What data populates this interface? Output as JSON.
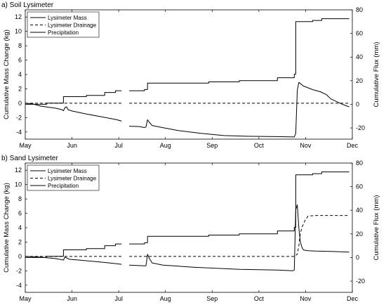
{
  "chart_data": [
    {
      "type": "line",
      "title": "a) Soil Lysimeter",
      "ylabel": "Cumulative Mass Change (kg)",
      "y2label": "Cumulative Flux (mm)",
      "x_tick_labels": [
        "May",
        "Jun",
        "Jul",
        "Aug",
        "Sep",
        "Oct",
        "Nov",
        "Dec"
      ],
      "y_ticks": [
        -4,
        -2,
        0,
        2,
        4,
        6,
        8,
        10,
        12
      ],
      "y2_ticks": [
        -20,
        0,
        20,
        40,
        60,
        80
      ],
      "xlim": [
        0,
        214
      ],
      "ylim": [
        -5,
        13
      ],
      "y2lim": [
        -29.5,
        80
      ],
      "legend": "top-left",
      "series": [
        {
          "name": "Lysimeter Mass",
          "style": "solid",
          "axis": "left",
          "segments": [
            [
              [
                0,
                0
              ],
              [
                5,
                -0.1
              ],
              [
                10,
                -0.4
              ],
              [
                15,
                -0.55
              ],
              [
                20,
                -0.7
              ],
              [
                24,
                -0.9
              ],
              [
                25,
                -1.05
              ],
              [
                26,
                -0.6
              ],
              [
                27,
                -0.5
              ],
              [
                28,
                -0.9
              ],
              [
                31,
                -1.1
              ],
              [
                40,
                -1.5
              ],
              [
                50,
                -1.9
              ],
              [
                60,
                -2.3
              ],
              [
                63,
                -2.5
              ]
            ],
            [
              [
                68,
                -3.2
              ],
              [
                75,
                -3.25
              ],
              [
                78,
                -3.4
              ],
              [
                79,
                -3.3
              ],
              [
                80,
                -2.3
              ],
              [
                81,
                -2.6
              ],
              [
                83,
                -3.1
              ],
              [
                90,
                -3.4
              ],
              [
                100,
                -3.8
              ],
              [
                115,
                -4.2
              ],
              [
                130,
                -4.5
              ],
              [
                145,
                -4.6
              ],
              [
                165,
                -4.65
              ],
              [
                176,
                -4.7
              ],
              [
                177,
                -4.2
              ],
              [
                178,
                1.8
              ],
              [
                179,
                2.9
              ],
              [
                182,
                2.4
              ],
              [
                188,
                1.9
              ],
              [
                193,
                1.6
              ],
              [
                197,
                1.2
              ],
              [
                200,
                0.6
              ],
              [
                204,
                0.2
              ],
              [
                208,
                -0.2
              ],
              [
                212,
                -0.5
              ]
            ]
          ]
        },
        {
          "name": "Lysimeter Drainage",
          "style": "dashed",
          "axis": "left",
          "segments": [
            [
              [
                0,
                0
              ],
              [
                63,
                0
              ]
            ],
            [
              [
                68,
                0
              ],
              [
                212,
                0
              ]
            ]
          ]
        },
        {
          "name": "Precipitation",
          "style": "solid",
          "axis": "right",
          "segments": [
            [
              [
                0,
                0
              ],
              [
                14,
                0
              ],
              [
                14,
                1
              ],
              [
                22,
                1
              ],
              [
                25,
                1
              ],
              [
                25,
                6.5
              ],
              [
                40,
                6.5
              ],
              [
                40,
                7.5
              ],
              [
                52,
                7.5
              ],
              [
                52,
                10
              ],
              [
                59,
                10
              ],
              [
                59,
                11.5
              ],
              [
                63,
                11.5
              ]
            ],
            [
              [
                68,
                11.5
              ],
              [
                78,
                11.5
              ],
              [
                78,
                12.5
              ],
              [
                80,
                12.5
              ],
              [
                80,
                18
              ],
              [
                120,
                18
              ],
              [
                120,
                19
              ],
              [
                140,
                19
              ],
              [
                140,
                20
              ],
              [
                165,
                20
              ],
              [
                165,
                22.5
              ],
              [
                176,
                22.5
              ],
              [
                176,
                25.5
              ],
              [
                177,
                25.5
              ],
              [
                177,
                70
              ],
              [
                188,
                70
              ],
              [
                188,
                71
              ],
              [
                194,
                71
              ],
              [
                194,
                72.5
              ],
              [
                212,
                72.5
              ]
            ]
          ]
        }
      ]
    },
    {
      "type": "line",
      "title": "b) Sand Lysimeter",
      "ylabel": "Cumulative Mass Change (kg)",
      "y2label": "Cumulative Flux (mm)",
      "x_tick_labels": [
        "May",
        "Jun",
        "Jul",
        "Aug",
        "Sep",
        "Oct",
        "Nov",
        "Dec"
      ],
      "y_ticks": [
        -4,
        -2,
        0,
        2,
        4,
        6,
        8,
        10,
        12
      ],
      "y2_ticks": [
        -20,
        0,
        20,
        40,
        60,
        80
      ],
      "xlim": [
        0,
        214
      ],
      "ylim": [
        -5,
        13
      ],
      "y2lim": [
        -29.5,
        80
      ],
      "legend": "top-left",
      "series": [
        {
          "name": "Lysimeter Mass",
          "style": "solid",
          "axis": "left",
          "segments": [
            [
              [
                0,
                0
              ],
              [
                10,
                -0.1
              ],
              [
                20,
                -0.3
              ],
              [
                25,
                -0.5
              ],
              [
                26,
                -0.1
              ],
              [
                27,
                -0.2
              ],
              [
                29,
                -0.4
              ],
              [
                35,
                -0.5
              ],
              [
                45,
                -0.7
              ],
              [
                55,
                -0.9
              ],
              [
                63,
                -1.1
              ]
            ],
            [
              [
                68,
                -1.2
              ],
              [
                78,
                -1.3
              ],
              [
                79,
                -1.3
              ],
              [
                80,
                0.3
              ],
              [
                81,
                -0.2
              ],
              [
                83,
                -0.9
              ],
              [
                90,
                -1.2
              ],
              [
                110,
                -1.5
              ],
              [
                140,
                -1.8
              ],
              [
                165,
                -1.9
              ],
              [
                175,
                -2.0
              ],
              [
                176,
                -1.9
              ],
              [
                177,
                6.5
              ],
              [
                178,
                7.2
              ],
              [
                179,
                4.0
              ],
              [
                180,
                2.0
              ],
              [
                181,
                1.3
              ],
              [
                182,
                0.9
              ],
              [
                185,
                0.8
              ],
              [
                190,
                0.75
              ],
              [
                200,
                0.7
              ],
              [
                212,
                0.6
              ]
            ]
          ]
        },
        {
          "name": "Lysimeter Drainage",
          "style": "dashed",
          "axis": "left",
          "segments": [
            [
              [
                0,
                0
              ],
              [
                63,
                0
              ]
            ],
            [
              [
                68,
                0
              ],
              [
                176,
                0
              ],
              [
                178,
                0.3
              ],
              [
                179,
                1.5
              ],
              [
                180,
                3.2
              ],
              [
                181,
                4.0
              ],
              [
                183,
                5.0
              ],
              [
                185,
                5.6
              ],
              [
                190,
                5.7
              ],
              [
                212,
                5.7
              ]
            ]
          ]
        },
        {
          "name": "Precipitation",
          "style": "solid",
          "axis": "right",
          "segments": [
            [
              [
                0,
                0
              ],
              [
                14,
                0
              ],
              [
                14,
                1
              ],
              [
                22,
                1
              ],
              [
                25,
                1
              ],
              [
                25,
                6.5
              ],
              [
                40,
                6.5
              ],
              [
                40,
                7.5
              ],
              [
                52,
                7.5
              ],
              [
                52,
                10
              ],
              [
                59,
                10
              ],
              [
                59,
                11.5
              ],
              [
                63,
                11.5
              ]
            ],
            [
              [
                68,
                11.5
              ],
              [
                78,
                11.5
              ],
              [
                78,
                12.5
              ],
              [
                80,
                12.5
              ],
              [
                80,
                18
              ],
              [
                120,
                18
              ],
              [
                120,
                19
              ],
              [
                140,
                19
              ],
              [
                140,
                20
              ],
              [
                165,
                20
              ],
              [
                165,
                22.5
              ],
              [
                176,
                22.5
              ],
              [
                176,
                25.5
              ],
              [
                177,
                25.5
              ],
              [
                177,
                70
              ],
              [
                188,
                70
              ],
              [
                188,
                71
              ],
              [
                194,
                71
              ],
              [
                194,
                72.5
              ],
              [
                212,
                72.5
              ]
            ]
          ]
        }
      ]
    }
  ]
}
